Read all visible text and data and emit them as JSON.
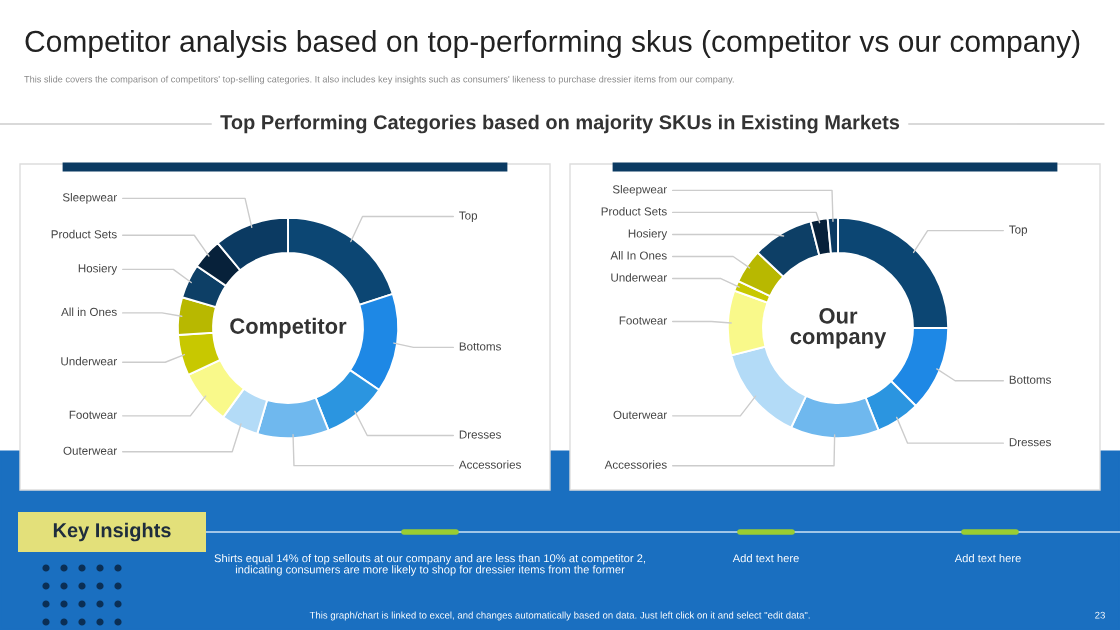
{
  "chart_data": [
    {
      "type": "other",
      "title": "Competitor analysis based on top-performing skus (competitor vs our company)",
      "subtitle": "This slide covers the comparison of competitors' top-selling categories. It also includes key insights such as consumers' likeness to purchase dressier items from our company.",
      "annotations": [
        "Top Performing Categories based on majority SKUs in Existing Markets"
      ]
    },
    {
      "type": "donut",
      "title": "Competitor",
      "categories": [
        "Top",
        "Bottoms",
        "Dresses",
        "Accessories",
        "Outerwear",
        "Footwear",
        "Underwear",
        "All in Ones",
        "Hosiery",
        "Product Sets",
        "Sleepwear"
      ],
      "values": [
        20,
        14.5,
        9.5,
        10.5,
        5.5,
        8,
        6,
        5.5,
        5,
        4.5,
        11
      ],
      "colors": [
        "#0c4673",
        "#1e88e5",
        "#2b95e0",
        "#6fb8ee",
        "#b3dbf7",
        "#f9f98a",
        "#c8c800",
        "#b8b800",
        "#0d3f66",
        "#07213a",
        "#0b3a62"
      ]
    },
    {
      "type": "donut",
      "title": "Our company",
      "categories": [
        "Top",
        "Bottoms",
        "Dresses",
        "Accessories",
        "Outerwear",
        "Footwear",
        "Underwear",
        "All In Ones",
        "Hosiery",
        "Product Sets",
        "Sleepwear"
      ],
      "values": [
        25,
        12.5,
        6.5,
        13,
        14,
        9.5,
        1.5,
        5,
        9,
        2.5,
        1.5
      ],
      "colors": [
        "#0c4673",
        "#1e88e5",
        "#2b95e0",
        "#6fb8ee",
        "#b3dbf7",
        "#f9f98a",
        "#c8c800",
        "#b8b800",
        "#0d3f66",
        "#07213a",
        "#0b3a62"
      ]
    },
    {
      "type": "other",
      "title": "Key Insights",
      "annotations": [
        "Shirts equal 14% of top sellouts at our company and are less than 10% at competitor 2, indicating consumers are more likely to shop for dressier items from the former",
        "Add text here",
        "Add text here",
        "This graph/chart is linked to excel, and changes automatically based on data. Just left click on it and select \"edit data\".",
        "23"
      ]
    }
  ]
}
